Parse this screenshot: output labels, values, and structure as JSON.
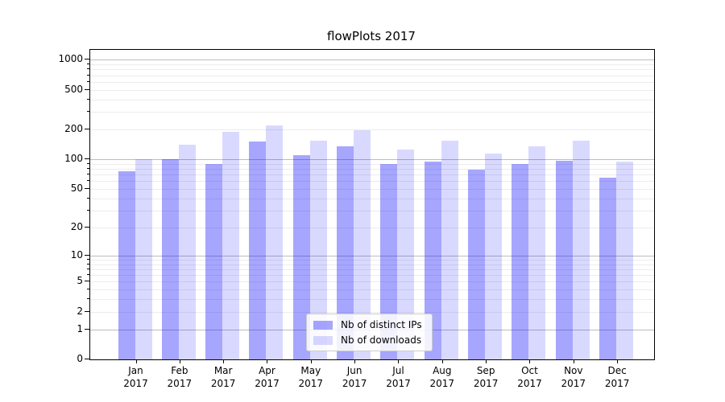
{
  "title": "flowPlots 2017",
  "chart_data": {
    "type": "bar",
    "title": "flowPlots 2017",
    "scale": "symlog",
    "categories": [
      "Jan",
      "Feb",
      "Mar",
      "Apr",
      "May",
      "Jun",
      "Jul",
      "Aug",
      "Sep",
      "Oct",
      "Nov",
      "Dec"
    ],
    "category_year": "2017",
    "series": [
      {
        "name": "Nb of distinct IPs",
        "color": "#0000ff",
        "alpha": 0.35,
        "values": [
          75,
          100,
          90,
          150,
          110,
          135,
          90,
          95,
          78,
          90,
          97,
          65
        ]
      },
      {
        "name": "Nb of downloads",
        "color": "#0000ff",
        "alpha": 0.15,
        "values": [
          100,
          140,
          190,
          220,
          155,
          195,
          125,
          155,
          115,
          135,
          155,
          95
        ]
      }
    ],
    "xlabel": "",
    "ylabel": "",
    "ylim": [
      0,
      1260
    ],
    "yticks": [
      0,
      1,
      2,
      5,
      10,
      20,
      50,
      100,
      200,
      500,
      1000
    ],
    "grid_major": [
      1,
      10,
      100,
      1000
    ],
    "grid_minor": [
      2,
      3,
      4,
      5,
      6,
      7,
      8,
      9,
      20,
      30,
      40,
      50,
      60,
      70,
      80,
      90,
      200,
      300,
      400,
      500,
      600,
      700,
      800,
      900
    ],
    "grid": true,
    "legend_position": "lower center"
  },
  "legend": {
    "items": [
      {
        "label": "Nb of distinct IPs"
      },
      {
        "label": "Nb of downloads"
      }
    ]
  }
}
